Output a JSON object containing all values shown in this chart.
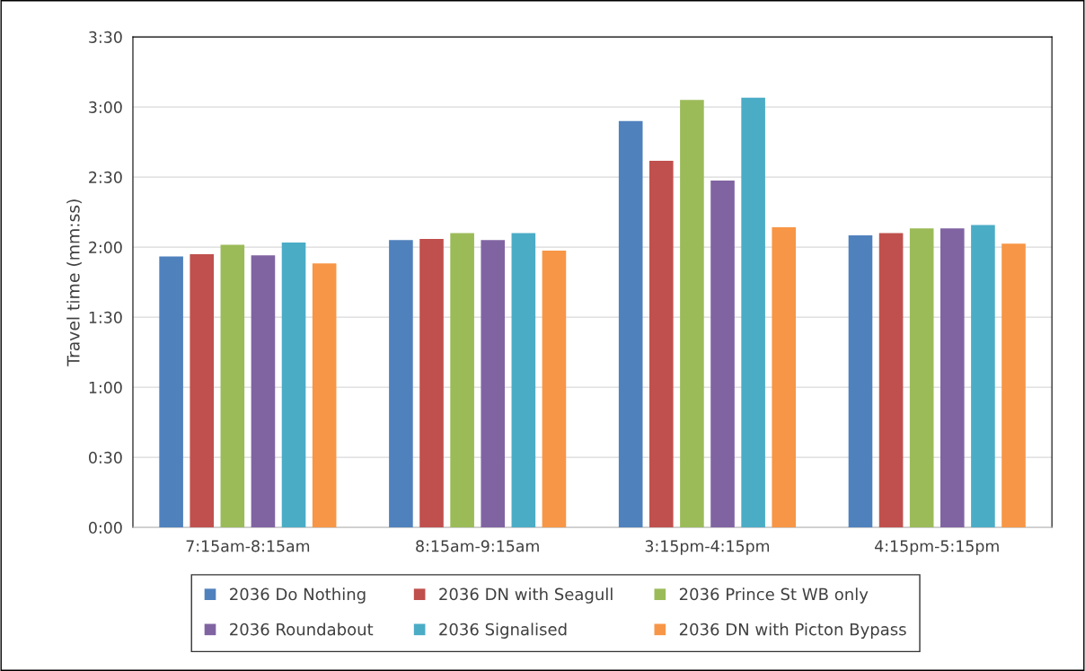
{
  "chart_data": {
    "type": "bar",
    "ylabel": "Travel time (mm:ss)",
    "categories": [
      "7:15am-8:15am",
      "8:15am-9:15am",
      "3:15pm-4:15pm",
      "4:15pm-5:15pm"
    ],
    "series": [
      {
        "name": "2036 Do Nothing",
        "color": "#4f81bd",
        "values": [
          116,
          123,
          174,
          125
        ]
      },
      {
        "name": "2036 DN with Seagull",
        "color": "#c0504d",
        "values": [
          117,
          123.5,
          157,
          126
        ]
      },
      {
        "name": "2036 Prince St WB only",
        "color": "#9bbb59",
        "values": [
          121,
          126,
          183,
          128
        ]
      },
      {
        "name": "2036 Roundabout",
        "color": "#8064a2",
        "values": [
          116.5,
          123,
          148.5,
          128
        ]
      },
      {
        "name": "2036 Signalised",
        "color": "#4bacc6",
        "values": [
          122,
          126,
          184,
          129.5
        ]
      },
      {
        "name": "2036 DN with Picton Bypass",
        "color": "#f79646",
        "values": [
          113,
          118.5,
          128.5,
          121.5
        ]
      }
    ],
    "ylim": [
      0,
      210
    ],
    "yticks": [
      {
        "value": 0,
        "label": "0:00"
      },
      {
        "value": 30,
        "label": "0:30"
      },
      {
        "value": 60,
        "label": "1:00"
      },
      {
        "value": 90,
        "label": "1:30"
      },
      {
        "value": 120,
        "label": "2:00"
      },
      {
        "value": 150,
        "label": "2:30"
      },
      {
        "value": 180,
        "label": "3:00"
      },
      {
        "value": 210,
        "label": "3:30"
      }
    ],
    "grid": "y",
    "legend": "bottom"
  }
}
